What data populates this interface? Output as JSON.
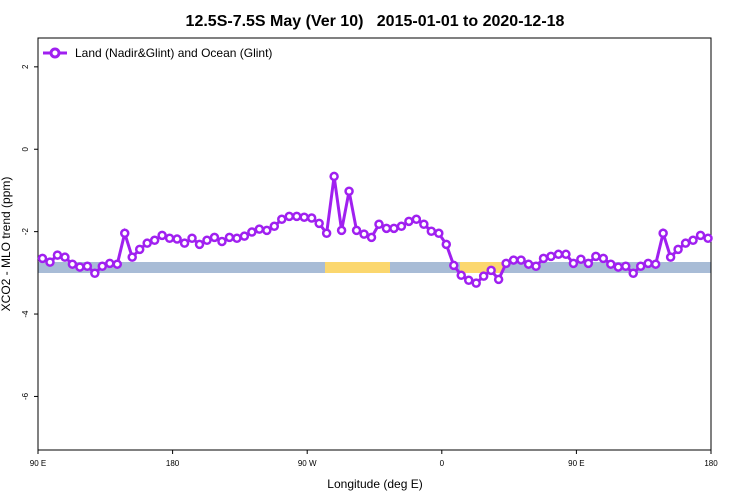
{
  "chart_data": {
    "type": "line",
    "title": "12.5S-7.5S May (Ver 10)   2015-01-01 to 2020-12-18",
    "xlabel": "Longitude (deg E)",
    "ylabel": "XCO2 - MLO trend (ppm)",
    "x": [
      93,
      98,
      103,
      108,
      113,
      118,
      123,
      128,
      133,
      138,
      143,
      148,
      153,
      158,
      163,
      168,
      173,
      178,
      183,
      188,
      193,
      198,
      203,
      208,
      213,
      218,
      223,
      228,
      233,
      238,
      243,
      248,
      253,
      258,
      263,
      268,
      273,
      278,
      283,
      288,
      293,
      298,
      303,
      308,
      313,
      318,
      323,
      328,
      333,
      338,
      343,
      348,
      353,
      358,
      363,
      368,
      373,
      378,
      383,
      388,
      393,
      398,
      403,
      408,
      413,
      418,
      423,
      428,
      433,
      438,
      443,
      448,
      453,
      458,
      463,
      468,
      473,
      478,
      483,
      488,
      493,
      498,
      503,
      508,
      513,
      518,
      523,
      528,
      533,
      538
    ],
    "series": [
      {
        "name": "Land (Nadir&Glint) and Ocean (Glint)",
        "color": "#a020f0",
        "values": [
          -2.65,
          -2.74,
          -2.57,
          -2.62,
          -2.79,
          -2.86,
          -2.84,
          -3.01,
          -2.84,
          -2.77,
          -2.79,
          -2.04,
          -2.62,
          -2.43,
          -2.28,
          -2.21,
          -2.09,
          -2.16,
          -2.18,
          -2.28,
          -2.16,
          -2.31,
          -2.21,
          -2.14,
          -2.24,
          -2.14,
          -2.16,
          -2.11,
          -2.01,
          -1.94,
          -1.97,
          -1.87,
          -1.7,
          -1.63,
          -1.63,
          -1.65,
          -1.67,
          -1.8,
          -2.04,
          -0.66,
          -1.97,
          -1.02,
          -1.97,
          -2.06,
          -2.14,
          -1.82,
          -1.92,
          -1.92,
          -1.87,
          -1.75,
          -1.7,
          -1.82,
          -1.99,
          -2.04,
          -2.31,
          -2.82,
          -3.06,
          -3.18,
          -3.25,
          -3.08,
          -2.94,
          -3.16,
          -2.77,
          -2.69,
          -2.69,
          -2.79,
          -2.84,
          -2.65,
          -2.6,
          -2.55,
          -2.55,
          -2.77,
          -2.67,
          -2.77,
          -2.6,
          -2.65,
          -2.79,
          -2.86,
          -2.84,
          -3.01,
          -2.84,
          -2.77,
          -2.79,
          -2.04,
          -2.62,
          -2.43,
          -2.28,
          -2.21,
          -2.09,
          -2.16
        ]
      }
    ],
    "xlim": [
      90,
      540
    ],
    "xticks": [
      {
        "value": 90,
        "label": "90 E"
      },
      {
        "value": 180,
        "label": "180"
      },
      {
        "value": 270,
        "label": "90 W"
      },
      {
        "value": 360,
        "label": "0"
      },
      {
        "value": 450,
        "label": "90 E"
      },
      {
        "value": 540,
        "label": "180"
      }
    ],
    "ylim": [
      -7.3,
      2.7
    ],
    "yticks": [
      2,
      0,
      -2,
      -4,
      -6
    ],
    "legend": "top-left"
  }
}
